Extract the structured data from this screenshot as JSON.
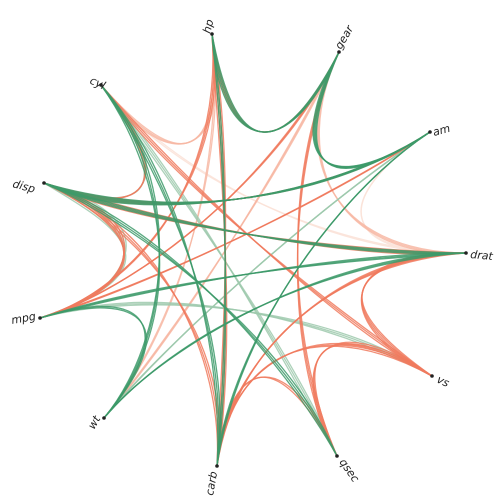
{
  "chart_data": {
    "type": "radial-parallel-coordinates",
    "center": "between node ring",
    "nodes": [
      {
        "id": "dsp",
        "label": "disp"
      },
      {
        "id": "cyl",
        "label": "cyl"
      },
      {
        "id": "hp",
        "label": "hp"
      },
      {
        "id": "gear",
        "label": "gear"
      },
      {
        "id": "am",
        "label": "am"
      },
      {
        "id": "drat",
        "label": "drat"
      },
      {
        "id": "vs",
        "label": "vs"
      },
      {
        "id": "qsec",
        "label": "qsec"
      },
      {
        "id": "carb",
        "label": "carb"
      },
      {
        "id": "wt",
        "label": "wt"
      },
      {
        "id": "mpg",
        "label": "mpg"
      }
    ],
    "palette": {
      "green": "#3d9a6a",
      "light_green": "#9ec9ad",
      "salmon": "#f07a5e",
      "light_salmon": "#f7b7a3",
      "pale": "#fbe2d8"
    },
    "edges": [
      {
        "from": "mpg",
        "to": "wt",
        "color": "green",
        "count": 2
      },
      {
        "from": "mpg",
        "to": "dsp",
        "color": "light_green",
        "count": 6
      },
      {
        "from": "mpg",
        "to": "dsp",
        "color": "salmon",
        "count": 4
      },
      {
        "from": "dsp",
        "to": "cyl",
        "color": "light_green",
        "count": 3
      },
      {
        "from": "dsp",
        "to": "cyl",
        "color": "salmon",
        "count": 2
      },
      {
        "from": "dsp",
        "to": "am",
        "color": "green",
        "count": 5
      },
      {
        "from": "dsp",
        "to": "am",
        "color": "salmon",
        "count": 4
      },
      {
        "from": "dsp",
        "to": "drat",
        "color": "salmon",
        "count": 4
      },
      {
        "from": "dsp",
        "to": "drat",
        "color": "green",
        "count": 3
      },
      {
        "from": "cyl",
        "to": "hp",
        "color": "light_salmon",
        "count": 3
      },
      {
        "from": "cyl",
        "to": "wt",
        "color": "green",
        "count": 3
      },
      {
        "from": "cyl",
        "to": "vs",
        "color": "salmon",
        "count": 3
      },
      {
        "from": "cyl",
        "to": "qsec",
        "color": "light_green",
        "count": 3
      },
      {
        "from": "hp",
        "to": "carb",
        "color": "salmon",
        "count": 4
      },
      {
        "from": "hp",
        "to": "carb",
        "color": "green",
        "count": 2
      },
      {
        "from": "hp",
        "to": "mpg",
        "color": "salmon",
        "count": 3
      },
      {
        "from": "hp",
        "to": "gear",
        "color": "green",
        "count": 4
      },
      {
        "from": "hp",
        "to": "gear",
        "color": "salmon",
        "count": 3
      },
      {
        "from": "gear",
        "to": "am",
        "color": "green",
        "count": 5
      },
      {
        "from": "gear",
        "to": "drat",
        "color": "light_salmon",
        "count": 3
      },
      {
        "from": "gear",
        "to": "qsec",
        "color": "salmon",
        "count": 3
      },
      {
        "from": "gear",
        "to": "mpg",
        "color": "salmon",
        "count": 3
      },
      {
        "from": "am",
        "to": "drat",
        "color": "pale",
        "count": 2
      },
      {
        "from": "am",
        "to": "wt",
        "color": "light_green",
        "count": 4
      },
      {
        "from": "am",
        "to": "carb",
        "color": "green",
        "count": 3
      },
      {
        "from": "drat",
        "to": "vs",
        "color": "salmon",
        "count": 4
      },
      {
        "from": "drat",
        "to": "carb",
        "color": "salmon",
        "count": 4
      },
      {
        "from": "drat",
        "to": "mpg",
        "color": "green",
        "count": 3
      },
      {
        "from": "vs",
        "to": "qsec",
        "color": "salmon",
        "count": 3
      },
      {
        "from": "vs",
        "to": "carb",
        "color": "salmon",
        "count": 3
      },
      {
        "from": "vs",
        "to": "mpg",
        "color": "light_green",
        "count": 3
      },
      {
        "from": "qsec",
        "to": "carb",
        "color": "salmon",
        "count": 2
      },
      {
        "from": "qsec",
        "to": "dsp",
        "color": "green",
        "count": 3
      },
      {
        "from": "carb",
        "to": "cyl",
        "color": "green",
        "count": 3
      },
      {
        "from": "carb",
        "to": "dsp",
        "color": "salmon",
        "count": 3
      },
      {
        "from": "wt",
        "to": "drat",
        "color": "green",
        "count": 3
      },
      {
        "from": "wt",
        "to": "gear",
        "color": "light_salmon",
        "count": 3
      },
      {
        "from": "mpg",
        "to": "am",
        "color": "salmon",
        "count": 3
      },
      {
        "from": "cyl",
        "to": "drat",
        "color": "pale",
        "count": 2
      },
      {
        "from": "hp",
        "to": "wt",
        "color": "light_salmon",
        "count": 2
      }
    ]
  }
}
